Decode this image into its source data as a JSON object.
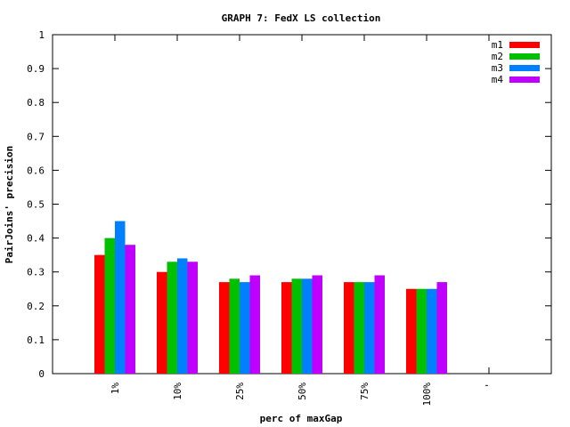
{
  "chart_data": {
    "type": "bar",
    "title": "GRAPH 7: FedX LS collection",
    "xlabel": "perc of maxGap",
    "ylabel": "PairJoins' precision",
    "categories": [
      "1%",
      "10%",
      "25%",
      "50%",
      "75%",
      "100%",
      "'"
    ],
    "ylim": [
      0,
      1
    ],
    "yticks": [
      "0",
      "0.1",
      "0.2",
      "0.3",
      "0.4",
      "0.5",
      "0.6",
      "0.7",
      "0.8",
      "0.9",
      "1"
    ],
    "grid": false,
    "legend_position": "top-right",
    "series": [
      {
        "name": "m1",
        "color": "#ff0000",
        "values": [
          0.35,
          0.3,
          0.27,
          0.27,
          0.27,
          0.25,
          null
        ]
      },
      {
        "name": "m2",
        "color": "#00c000",
        "values": [
          0.4,
          0.33,
          0.28,
          0.28,
          0.27,
          0.25,
          null
        ]
      },
      {
        "name": "m3",
        "color": "#0080ff",
        "values": [
          0.45,
          0.34,
          0.27,
          0.28,
          0.27,
          0.25,
          null
        ]
      },
      {
        "name": "m4",
        "color": "#c000ff",
        "values": [
          0.38,
          0.33,
          0.29,
          0.29,
          0.29,
          0.27,
          null
        ]
      }
    ]
  }
}
